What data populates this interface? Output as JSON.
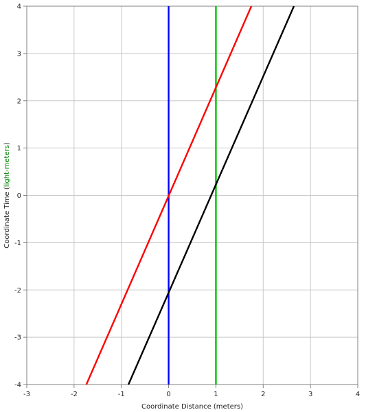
{
  "chart_data": {
    "type": "line",
    "title": "",
    "xlabel": "Coordinate Distance (meters)",
    "ylabel_parts": [
      "Coordinate Time (",
      "light-meters",
      ")"
    ],
    "xlim": [
      -3,
      4
    ],
    "ylim": [
      -4,
      4
    ],
    "x_ticks": [
      -3,
      -2,
      -1,
      0,
      1,
      2,
      3,
      4
    ],
    "y_ticks": [
      -4,
      -3,
      -2,
      -1,
      0,
      1,
      2,
      3,
      4
    ],
    "grid": true,
    "series": [
      {
        "color": "#0000ff",
        "points": [
          [
            0,
            -4
          ],
          [
            0,
            4
          ]
        ]
      },
      {
        "color": "#00c000",
        "points": [
          [
            1,
            -4
          ],
          [
            1,
            4
          ]
        ]
      },
      {
        "color": "#ff0000",
        "points": [
          [
            -1.74,
            -4
          ],
          [
            1.75,
            4
          ]
        ]
      },
      {
        "color": "#000000",
        "points": [
          [
            -0.85,
            -4
          ],
          [
            2.65,
            4
          ]
        ]
      }
    ],
    "colors": {
      "grid": "#c8c8c8",
      "frame": "#808080",
      "ylabel_accent": "#008000"
    }
  }
}
